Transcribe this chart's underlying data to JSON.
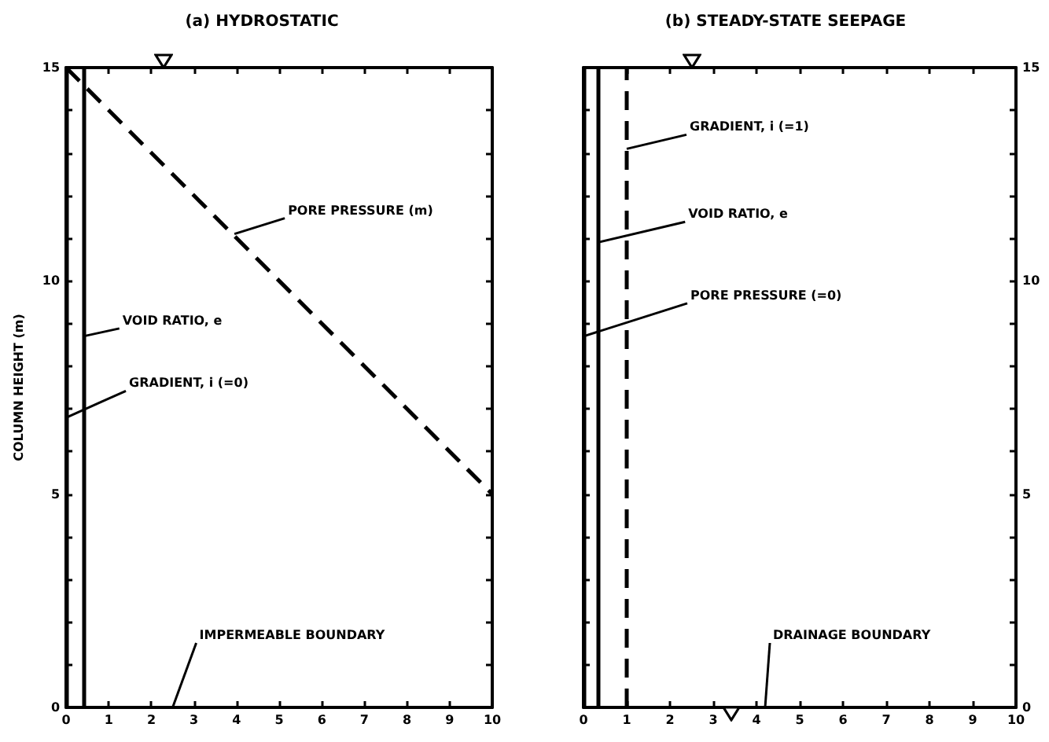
{
  "chart_data": [
    {
      "type": "line",
      "title": "(a) HYDROSTATIC",
      "ylabel": "COLUMN HEIGHT (m)",
      "xlim": [
        0,
        10
      ],
      "xticks": [
        0,
        1,
        2,
        3,
        4,
        5,
        6,
        7,
        8,
        9,
        10
      ],
      "ylim": [
        0,
        15
      ],
      "yticks": [
        0,
        {
          "value": 1,
          "label": null
        },
        {
          "value": 2,
          "label": null
        },
        {
          "value": 3,
          "label": null
        },
        {
          "value": 4,
          "label": null
        },
        5,
        {
          "value": 6,
          "label": null
        },
        {
          "value": 7,
          "label": null
        },
        {
          "value": 8,
          "label": null
        },
        {
          "value": 9,
          "label": null
        },
        10,
        {
          "value": 11,
          "label": null
        },
        {
          "value": 12,
          "label": null
        },
        {
          "value": 13,
          "label": null
        },
        {
          "value": 14,
          "label": null
        },
        15
      ],
      "marker": "none",
      "series": [
        {
          "color": "#000000",
          "line_style": "dashed",
          "x": [
            0,
            10
          ],
          "values": [
            15,
            5
          ]
        }
      ],
      "ref_lines": [
        {
          "axis": "x",
          "value": 0.4,
          "label": "VOID RATIO, e",
          "color": "#000000",
          "line_style": "solid"
        },
        {
          "axis": "x",
          "value": 0,
          "label": "GRADIENT, i (=0)",
          "color": "#000000",
          "line_style": "solid"
        }
      ],
      "annotations": [
        {
          "text": "PORE PRESSURE (m)",
          "x": 3.95,
          "y": 11.1
        },
        "IMPERMEABLE BOUNDARY"
      ]
    },
    {
      "type": "line",
      "title": "(b) STEADY-STATE SEEPAGE",
      "xlim": [
        0,
        10
      ],
      "xticks": [
        0,
        1,
        2,
        3,
        4,
        5,
        6,
        7,
        8,
        9,
        10
      ],
      "ylim": [
        0,
        15
      ],
      "yticks": [
        0,
        {
          "value": 1,
          "label": null
        },
        {
          "value": 2,
          "label": null
        },
        {
          "value": 3,
          "label": null
        },
        {
          "value": 4,
          "label": null
        },
        5,
        {
          "value": 6,
          "label": null
        },
        {
          "value": 7,
          "label": null
        },
        {
          "value": 8,
          "label": null
        },
        {
          "value": 9,
          "label": null
        },
        10,
        {
          "value": 11,
          "label": null
        },
        {
          "value": 12,
          "label": null
        },
        {
          "value": 13,
          "label": null
        },
        {
          "value": 14,
          "label": null
        },
        15
      ],
      "marker": "none",
      "ref_lines": [
        {
          "axis": "x",
          "value": 1,
          "label": "GRADIENT, i (=1)",
          "color": "#000000",
          "line_style": "dashed"
        },
        {
          "axis": "x",
          "value": 0.35,
          "label": "VOID RATIO, e",
          "color": "#000000",
          "line_style": "solid"
        },
        {
          "axis": "x",
          "value": 0,
          "label": "PORE PRESSURE (=0)",
          "color": "#000000",
          "line_style": "solid"
        }
      ],
      "annotations": [
        "DRAINAGE BOUNDARY"
      ]
    }
  ]
}
